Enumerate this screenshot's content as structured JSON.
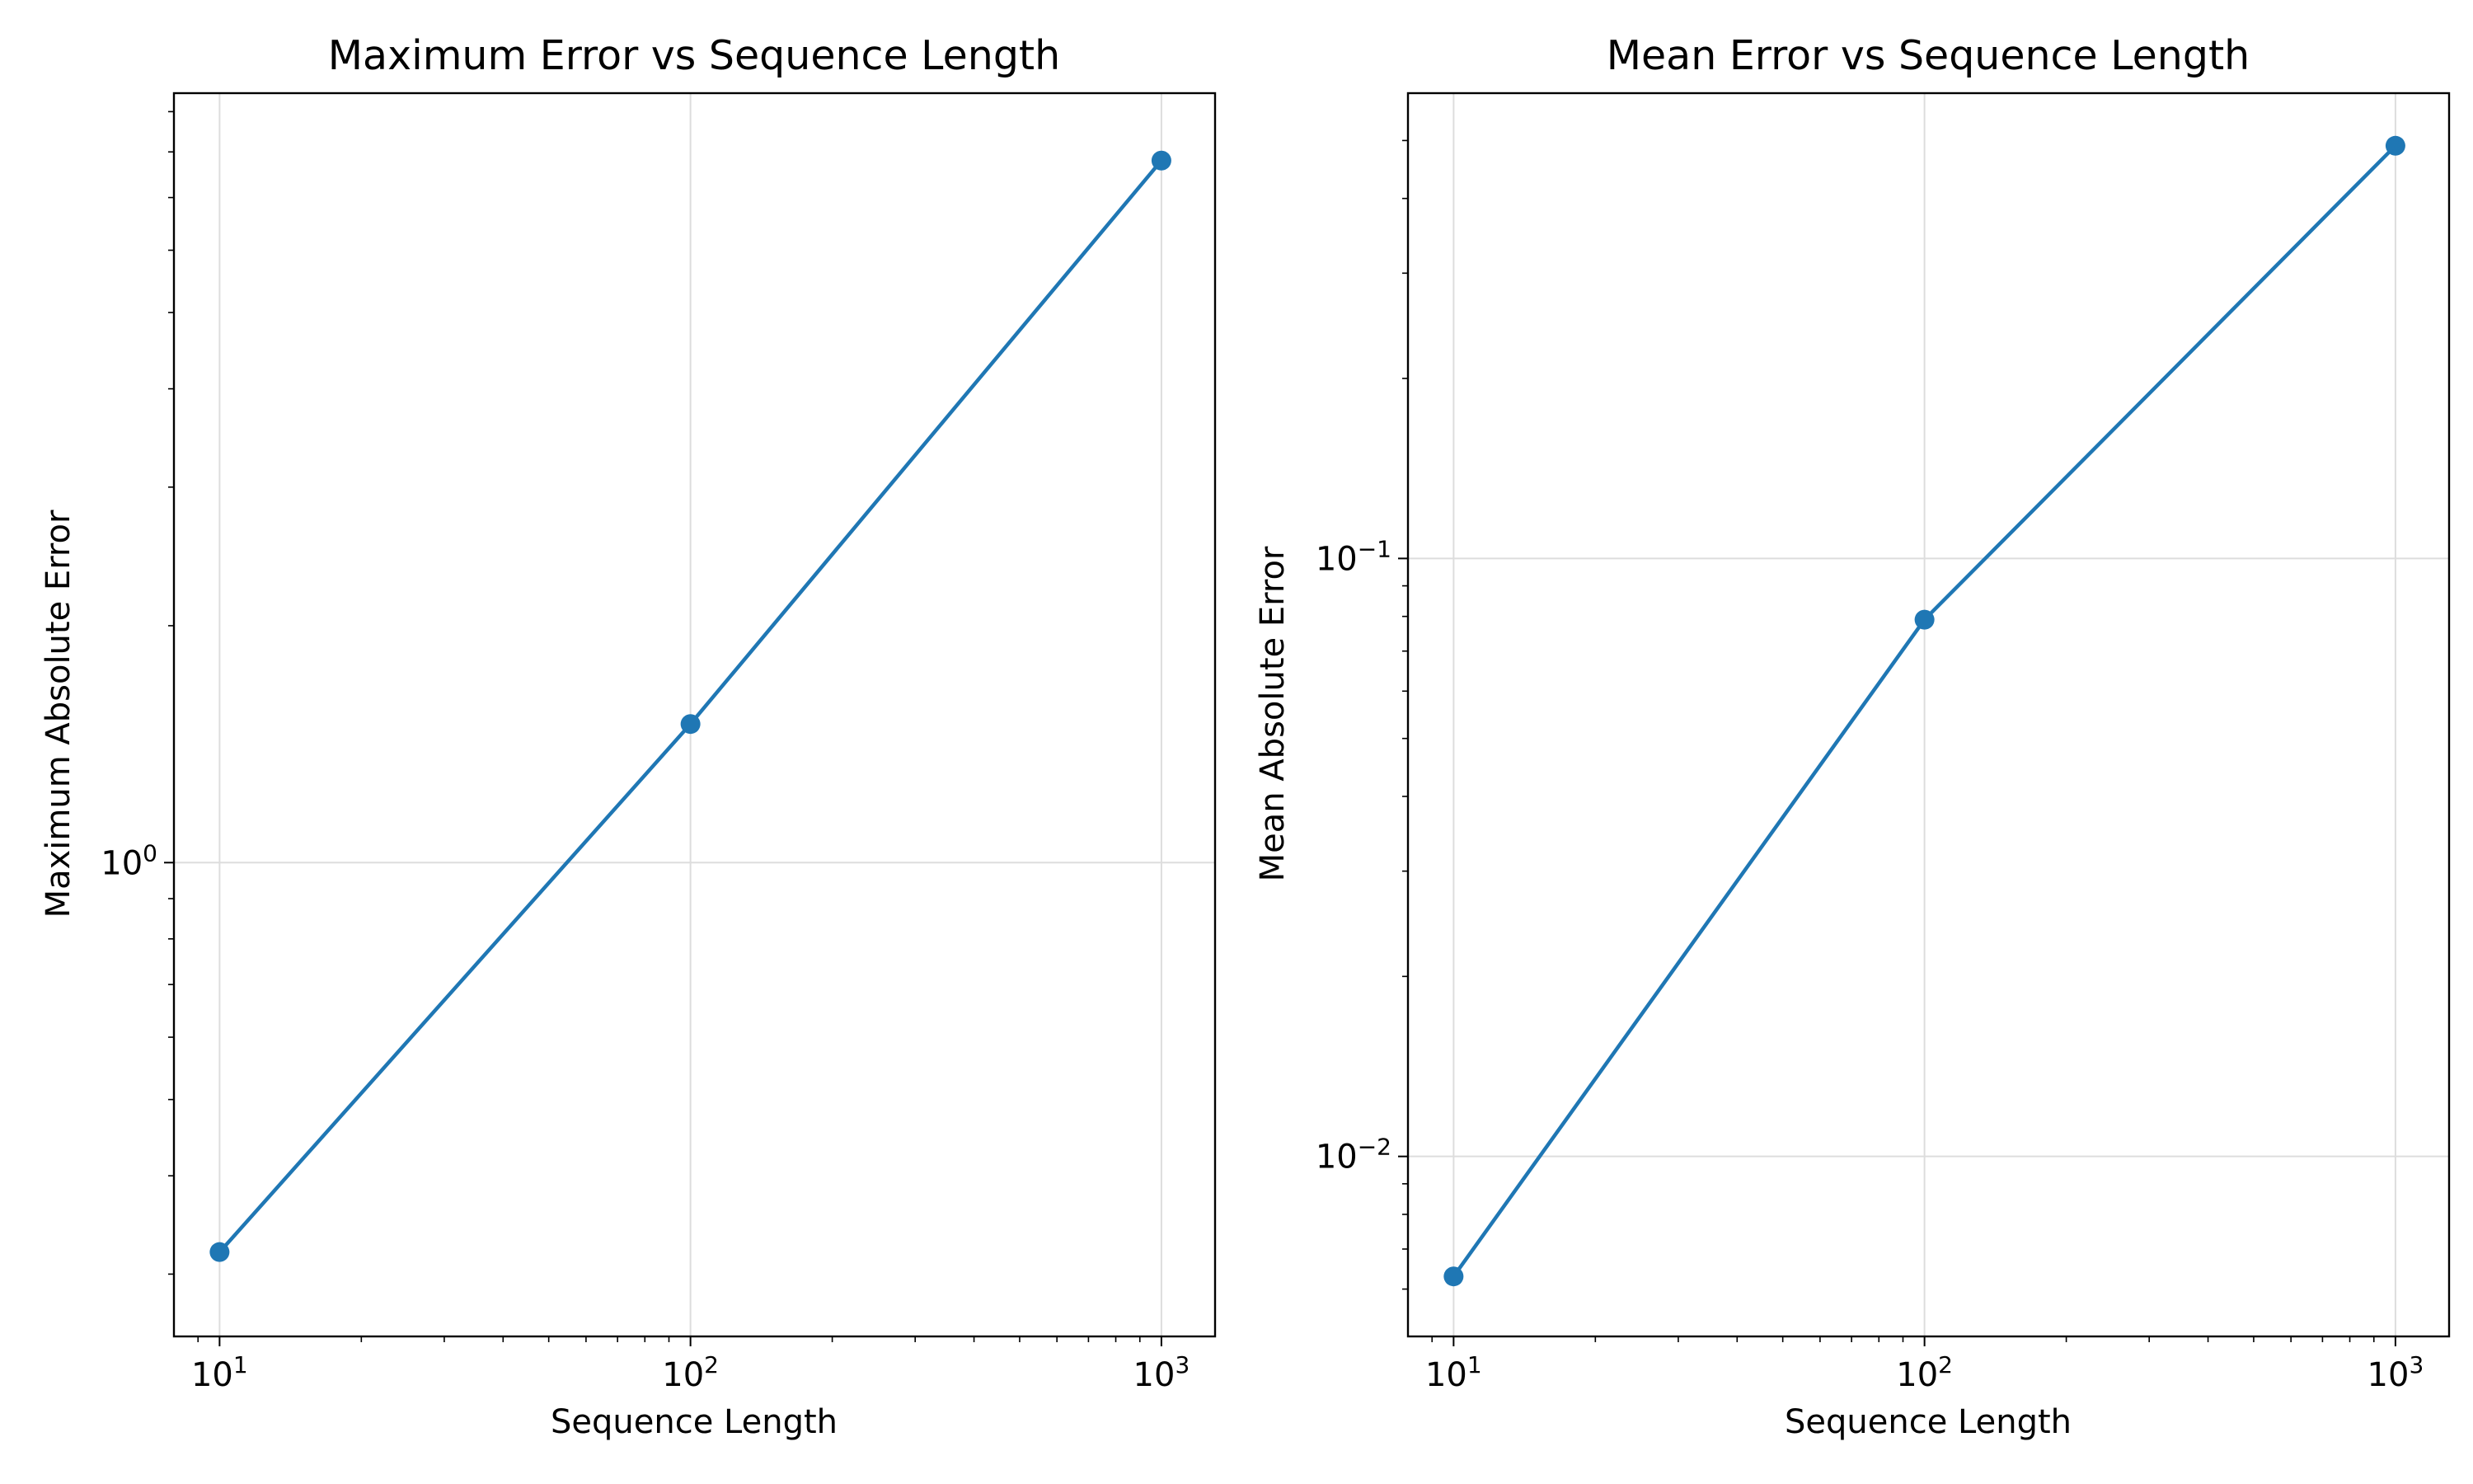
{
  "colors": {
    "series": "#1f77b4",
    "grid": "#dddddd",
    "axes": "#000000",
    "background": "#ffffff"
  },
  "chart_data": [
    {
      "type": "line",
      "title": "Maximum Error vs Sequence Length",
      "xlabel": "Sequence Length",
      "ylabel": "Maximum Absolute Error",
      "xscale": "log",
      "yscale": "log",
      "xlim": [
        8,
        1300
      ],
      "ylim": [
        0.25,
        9.5
      ],
      "grid": true,
      "legend": "none",
      "x_ticks": [
        {
          "base": "10",
          "exp": "1"
        },
        {
          "base": "10",
          "exp": "2"
        },
        {
          "base": "10",
          "exp": "3"
        }
      ],
      "y_ticks": [
        {
          "base": "10",
          "exp": "0"
        }
      ],
      "series": [
        {
          "x": [
            10,
            100,
            1000
          ],
          "y": [
            0.32,
            1.5,
            7.8
          ],
          "marker": "circle"
        }
      ]
    },
    {
      "type": "line",
      "title": "Mean Error vs Sequence Length",
      "xlabel": "Sequence Length",
      "ylabel": "Mean Absolute Error",
      "xscale": "log",
      "yscale": "log",
      "xlim": [
        8,
        1300
      ],
      "ylim": [
        0.005,
        0.6
      ],
      "grid": true,
      "legend": "none",
      "x_ticks": [
        {
          "base": "10",
          "exp": "1"
        },
        {
          "base": "10",
          "exp": "2"
        },
        {
          "base": "10",
          "exp": "3"
        }
      ],
      "y_ticks": [
        {
          "base": "10",
          "exp": "−1"
        },
        {
          "base": "10",
          "exp": "−2"
        }
      ],
      "series": [
        {
          "x": [
            10,
            100,
            1000
          ],
          "y": [
            0.0063,
            0.079,
            0.49
          ],
          "marker": "circle"
        }
      ]
    }
  ]
}
